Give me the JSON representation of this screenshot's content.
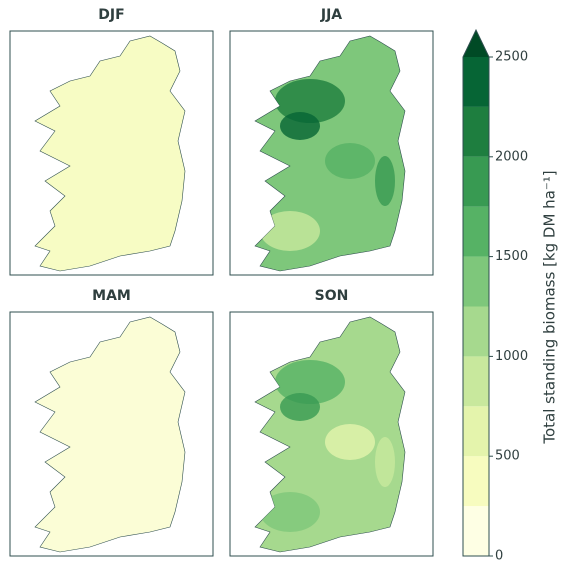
{
  "panels": [
    {
      "title": "DJF",
      "color": "#f7fcc4"
    },
    {
      "title": "JJA",
      "color": "#7ec77b"
    },
    {
      "title": "MAM",
      "color": "#fbfdd6"
    },
    {
      "title": "SON",
      "color": "#a6d98e"
    }
  ],
  "colorbar": {
    "label": "Total standing biomass [kg DM ha⁻¹]",
    "lim": [
      0,
      2500
    ],
    "ticks": [
      0,
      500,
      1000,
      1500,
      2000,
      2500
    ],
    "levels": [
      0,
      250,
      500,
      750,
      1000,
      1250,
      1500,
      1750,
      2000,
      2250,
      2500
    ],
    "colors": [
      "#feffe4",
      "#f7fcbf",
      "#e4f4ac",
      "#c8e89d",
      "#a6d98e",
      "#7ec77b",
      "#56b265",
      "#389a52",
      "#1e7e3f",
      "#066535"
    ],
    "extend_color": "#004a25"
  }
}
